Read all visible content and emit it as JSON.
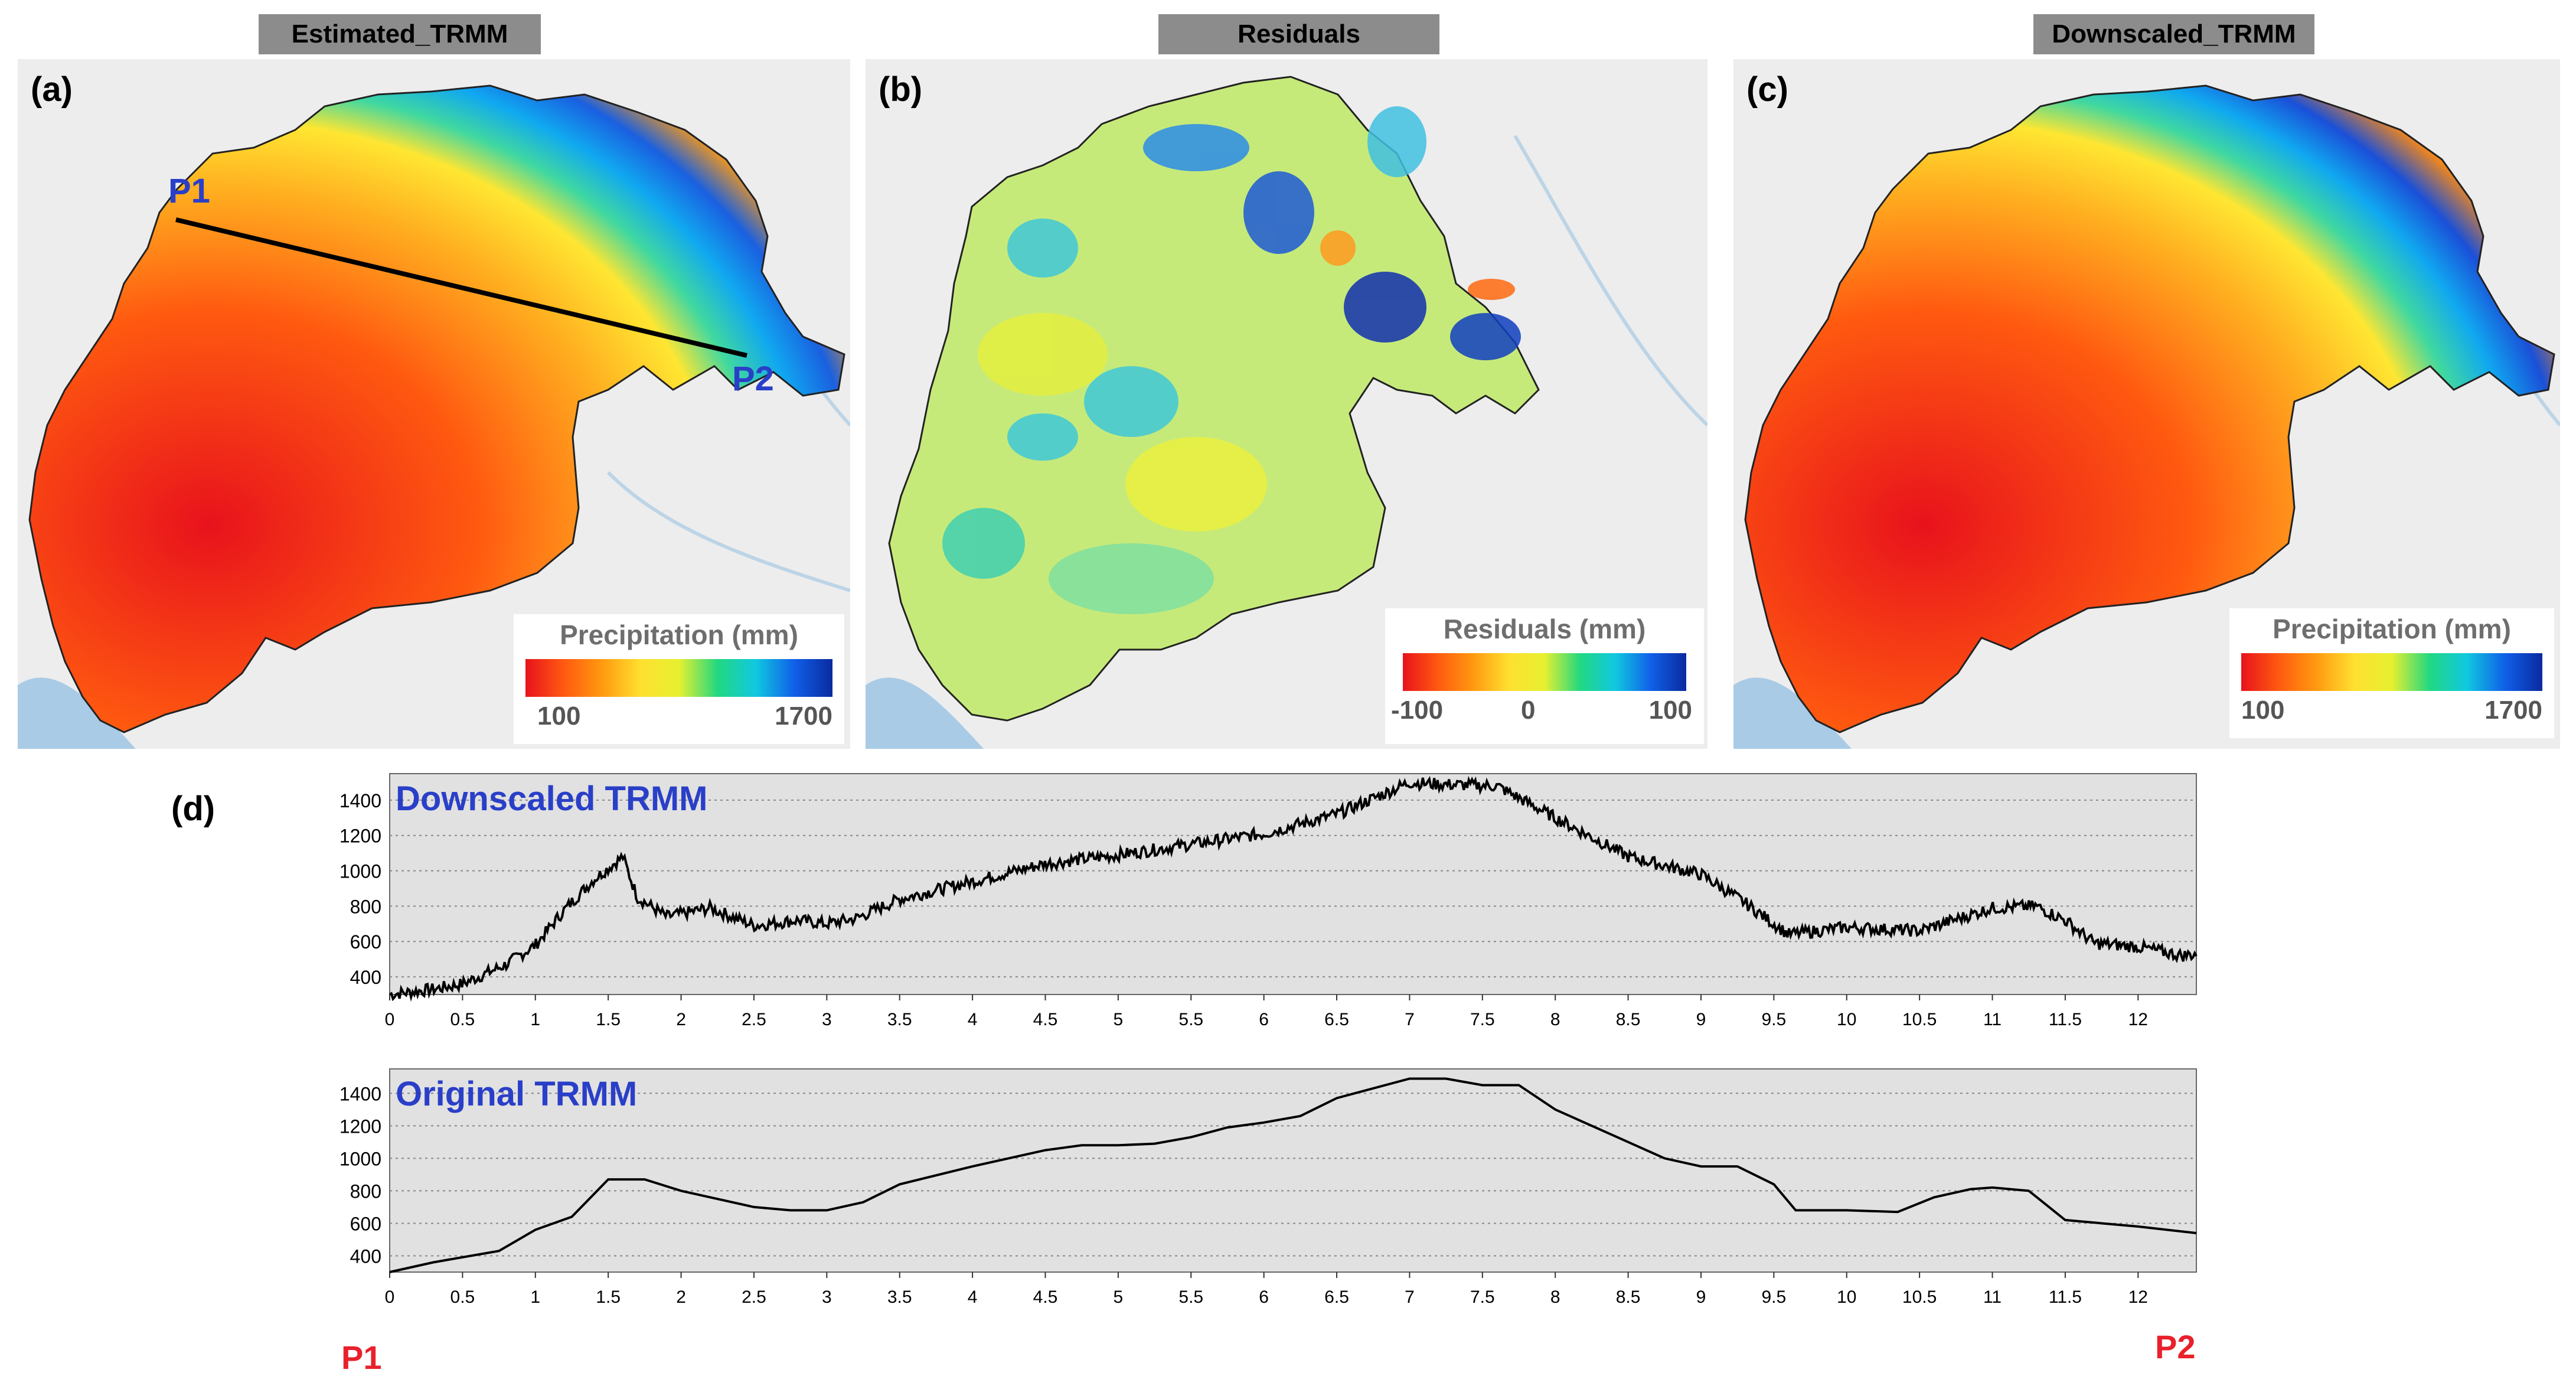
{
  "figure": {
    "panels": [
      {
        "tag": "Estimated_TRMM",
        "letter": "(a)",
        "legend_title": "Precipitation (mm)",
        "ticks": [
          "100",
          "1700"
        ],
        "points": [
          "P1",
          "P2"
        ]
      },
      {
        "tag": "Residuals",
        "letter": "(b)",
        "legend_title": "Residuals (mm)",
        "ticks": [
          "-100",
          "0",
          "100"
        ]
      },
      {
        "tag": "Downscaled_TRMM",
        "letter": "(c)",
        "legend_title": "Precipitation (mm)",
        "ticks": [
          "100",
          "1700"
        ]
      }
    ],
    "profile_letter": "(d)",
    "profile_start": "P1",
    "profile_end": "P2"
  },
  "colors": {
    "precip_ramp": [
      "#e8121c",
      "#ff5a10",
      "#ff9a10",
      "#ffe030",
      "#e6f030",
      "#22d880",
      "#10c8e0",
      "#1060e8",
      "#0a2aa0"
    ],
    "label_blue": "#2a3fc8",
    "point_red": "#e8212b"
  },
  "chart_data": [
    {
      "type": "line",
      "title": "Downscaled TRMM",
      "xlabel": "",
      "ylabel": "",
      "xlim": [
        0,
        12.4
      ],
      "ylim": [
        300,
        1550
      ],
      "xticks": [
        "0",
        "0.5",
        "1",
        "1.5",
        "2",
        "2.5",
        "3",
        "3.5",
        "4",
        "4.5",
        "5",
        "5.5",
        "6",
        "6.5",
        "7",
        "7.5",
        "8",
        "8.5",
        "9",
        "9.5",
        "10",
        "10.5",
        "11",
        "11.5",
        "12"
      ],
      "yticks": [
        "400",
        "600",
        "800",
        "1000",
        "1200",
        "1400"
      ],
      "grid": true,
      "noisy": true,
      "x": [
        0,
        0.3,
        0.5,
        0.8,
        1.0,
        1.2,
        1.4,
        1.6,
        1.7,
        1.9,
        2.2,
        2.5,
        2.8,
        3.0,
        3.2,
        3.5,
        4.0,
        4.5,
        5.0,
        5.5,
        6.0,
        6.5,
        7.0,
        7.2,
        7.6,
        8.0,
        8.5,
        9.0,
        9.3,
        9.6,
        10.0,
        10.5,
        11.0,
        11.3,
        11.5,
        11.7,
        12.0,
        12.3,
        12.4
      ],
      "y": [
        300,
        330,
        360,
        470,
        580,
        780,
        950,
        1080,
        850,
        740,
        790,
        690,
        720,
        700,
        730,
        840,
        940,
        1040,
        1090,
        1150,
        1210,
        1320,
        1500,
        1490,
        1480,
        1300,
        1080,
        980,
        820,
        640,
        680,
        660,
        790,
        800,
        720,
        590,
        570,
        520,
        530
      ]
    },
    {
      "type": "line",
      "title": "Original TRMM",
      "xlabel": "",
      "ylabel": "",
      "xlim": [
        0,
        12.4
      ],
      "ylim": [
        300,
        1550
      ],
      "xticks": [
        "0",
        "0.5",
        "1",
        "1.5",
        "2",
        "2.5",
        "3",
        "3.5",
        "4",
        "4.5",
        "5",
        "5.5",
        "6",
        "6.5",
        "7",
        "7.5",
        "8",
        "8.5",
        "9",
        "9.5",
        "10",
        "10.5",
        "11",
        "11.5",
        "12"
      ],
      "yticks": [
        "400",
        "600",
        "800",
        "1000",
        "1200",
        "1400"
      ],
      "grid": true,
      "noisy": false,
      "x": [
        0,
        0.3,
        0.75,
        1.0,
        1.25,
        1.5,
        1.75,
        2.0,
        2.5,
        2.75,
        3.0,
        3.25,
        3.5,
        4.0,
        4.5,
        4.75,
        5.0,
        5.25,
        5.5,
        5.75,
        6.0,
        6.25,
        6.5,
        7.0,
        7.25,
        7.5,
        7.75,
        8.0,
        8.5,
        8.75,
        9.0,
        9.25,
        9.5,
        9.65,
        10.0,
        10.35,
        10.6,
        10.85,
        11.0,
        11.25,
        11.5,
        12.0,
        12.4
      ],
      "y": [
        300,
        360,
        430,
        560,
        640,
        870,
        870,
        800,
        700,
        680,
        680,
        730,
        840,
        950,
        1050,
        1080,
        1080,
        1090,
        1130,
        1190,
        1220,
        1260,
        1370,
        1490,
        1490,
        1450,
        1450,
        1300,
        1100,
        1000,
        950,
        950,
        840,
        680,
        680,
        670,
        760,
        810,
        820,
        800,
        620,
        580,
        540
      ]
    }
  ]
}
